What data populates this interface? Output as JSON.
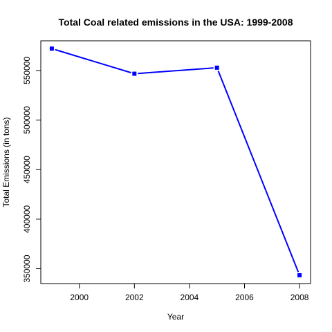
{
  "chart_data": {
    "type": "line",
    "title": "Total Coal related emissions in the USA: 1999-2008",
    "xlabel": "Year",
    "ylabel": "Total Emissions (in tons)",
    "x": [
      1999,
      2002,
      2005,
      2008
    ],
    "series": [
      {
        "name": "Total Emissions",
        "values": [
          572126,
          546789,
          552881,
          343432
        ],
        "color": "#0000ff"
      }
    ],
    "xlim": [
      1998.6,
      2008.4
    ],
    "ylim": [
      335000,
      580000
    ],
    "xticks": [
      2000,
      2002,
      2004,
      2006,
      2008
    ],
    "xtick_labels": [
      "2000",
      "2002",
      "2004",
      "2006",
      "2008"
    ],
    "yticks": [
      350000,
      400000,
      450000,
      500000,
      550000
    ],
    "ytick_labels": [
      "350000",
      "400000",
      "450000",
      "500000",
      "550000"
    ],
    "grid": false,
    "legend": "none"
  }
}
